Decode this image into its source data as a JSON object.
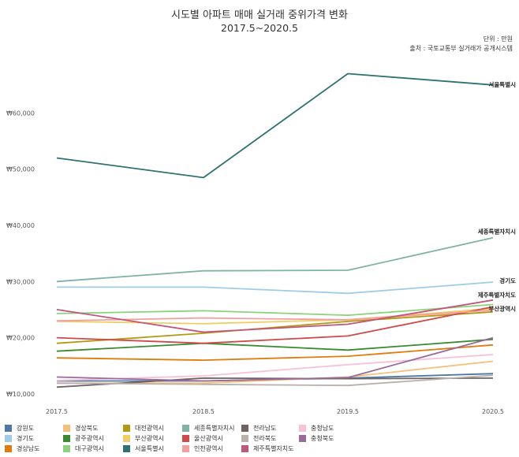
{
  "header": {
    "title": "시도별 아파트 매매 실거래 중위가격 변화",
    "subtitle": "2017.5~2020.5",
    "unit": "단위 : 만원",
    "source": "출처 : 국토교통부 실거래가 공개시스템"
  },
  "chart_data": {
    "type": "line",
    "categories": [
      "2017.5",
      "2018.5",
      "2019.5",
      "2020.5"
    ],
    "ylim": [
      9000,
      71000
    ],
    "yticks": [
      10000,
      20000,
      30000,
      40000,
      50000,
      60000
    ],
    "ytick_labels": [
      "₩10,000",
      "₩20,000",
      "₩30,000",
      "₩40,000",
      "₩50,000",
      "₩60,000"
    ],
    "grid": false,
    "legend_position": "bottom",
    "series": [
      {
        "name": "강원도",
        "color": "#4e79a7",
        "values": [
          12300,
          12300,
          12800,
          13600
        ],
        "end_label": ""
      },
      {
        "name": "경기도",
        "color": "#a0cbe8",
        "values": [
          29000,
          29000,
          27900,
          29900
        ],
        "end_label": "경기도"
      },
      {
        "name": "경상남도",
        "color": "#e07b10",
        "values": [
          16400,
          16000,
          16700,
          18700
        ],
        "end_label": ""
      },
      {
        "name": "경상북도",
        "color": "#f4c07a",
        "values": [
          11900,
          11900,
          13000,
          15800
        ],
        "end_label": ""
      },
      {
        "name": "광주광역시",
        "color": "#3a8a30",
        "values": [
          17600,
          19000,
          17800,
          19700
        ],
        "end_label": ""
      },
      {
        "name": "대구광역시",
        "color": "#8cd17d",
        "values": [
          24300,
          24800,
          24000,
          25900
        ],
        "end_label": ""
      },
      {
        "name": "대전광역시",
        "color": "#b39a12",
        "values": [
          19000,
          20800,
          22900,
          24600
        ],
        "end_label": ""
      },
      {
        "name": "부산광역시",
        "color": "#f1ce63",
        "values": [
          22900,
          22500,
          23200,
          25200
        ],
        "end_label": "부산광역시"
      },
      {
        "name": "서울특별시",
        "color": "#2f7272",
        "values": [
          52000,
          48500,
          67000,
          65000
        ],
        "end_label": "서울특별시"
      },
      {
        "name": "세종특별자치시",
        "color": "#7fb3a8",
        "values": [
          30000,
          31900,
          32000,
          37800
        ],
        "end_label": "세종특별자치시"
      },
      {
        "name": "울산광역시",
        "color": "#d04a4a",
        "values": [
          20000,
          19000,
          20300,
          25500
        ],
        "end_label": ""
      },
      {
        "name": "인천광역시",
        "color": "#f2a09e",
        "values": [
          23000,
          23500,
          23200,
          24900
        ],
        "end_label": ""
      },
      {
        "name": "전라남도",
        "color": "#6e6360",
        "values": [
          11200,
          12800,
          12700,
          12800
        ],
        "end_label": ""
      },
      {
        "name": "전라북도",
        "color": "#bab0ac",
        "values": [
          11900,
          11700,
          11500,
          13300
        ],
        "end_label": ""
      },
      {
        "name": "제주특별자치도",
        "color": "#c0567a",
        "values": [
          25000,
          21000,
          22400,
          26700
        ],
        "end_label": "제주특별자치도"
      },
      {
        "name": "충청남도",
        "color": "#f7c2d8",
        "values": [
          12400,
          13200,
          15200,
          17000
        ],
        "end_label": ""
      },
      {
        "name": "충청북도",
        "color": "#9a6a9a",
        "values": [
          13000,
          12300,
          12900,
          20000
        ],
        "end_label": ""
      }
    ]
  },
  "legend": {
    "columns": [
      [
        "강원도",
        "경기도",
        "경상남도"
      ],
      [
        "경상북도",
        "광주광역시",
        "대구광역시"
      ],
      [
        "대전광역시",
        "부산광역시",
        "서울특별시"
      ],
      [
        "세종특별자치시",
        "울산광역시",
        "인천광역시"
      ],
      [
        "전라남도",
        "전라북도",
        "제주특별자치도"
      ],
      [
        "충청남도",
        "충청북도"
      ]
    ]
  }
}
